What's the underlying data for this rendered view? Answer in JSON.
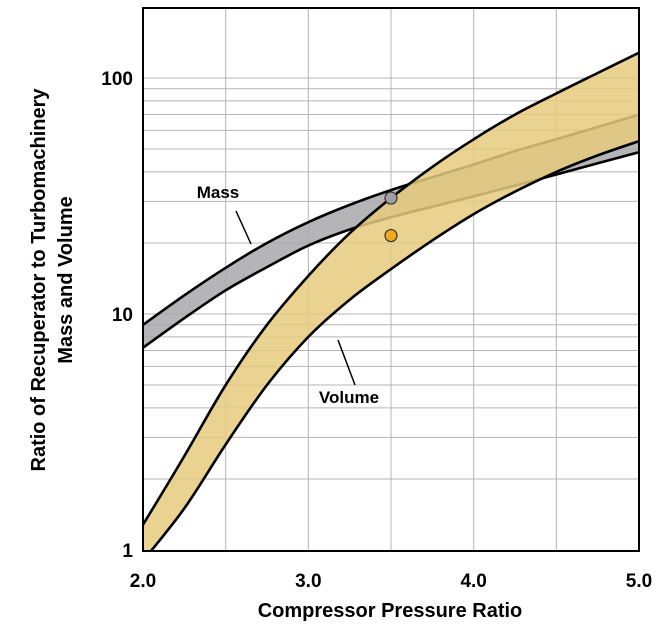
{
  "chart_data": {
    "type": "area",
    "title": "",
    "xlabel": "Compressor Pressure Ratio",
    "ylabel": [
      "Ratio of Recuperator to Turbomachinery",
      "Mass and Volume"
    ],
    "xlim": [
      2.0,
      5.0
    ],
    "ylim": [
      1,
      200
    ],
    "y_scale": "log",
    "grid": true,
    "x_ticks": [
      "2.0",
      "3.0",
      "4.0",
      "5.0"
    ],
    "y_ticks": [
      "1",
      "10",
      "100"
    ],
    "series": [
      {
        "name": "Mass",
        "color": "#a8a8aa",
        "x": [
          2.0,
          2.25,
          2.5,
          2.75,
          3.0,
          3.25,
          3.5,
          3.75,
          4.0,
          4.25,
          4.5,
          4.75,
          5.0
        ],
        "upper": [
          9.0,
          12.0,
          15.7,
          20.0,
          24.5,
          29.0,
          33.5,
          38.0,
          43.0,
          49.0,
          55.0,
          62.0,
          70.0
        ],
        "lower": [
          7.2,
          9.6,
          12.6,
          15.8,
          19.5,
          22.8,
          25.7,
          28.5,
          31.5,
          35.0,
          39.0,
          43.5,
          48.5
        ]
      },
      {
        "name": "Volume",
        "color": "#e6ca7e",
        "x": [
          2.0,
          2.25,
          2.5,
          2.75,
          3.0,
          3.25,
          3.5,
          3.75,
          4.0,
          4.25,
          4.5,
          4.75,
          5.0
        ],
        "upper": [
          1.28,
          2.5,
          5.0,
          9.0,
          14.5,
          22.0,
          31.0,
          42.0,
          55.0,
          70.0,
          86.0,
          105.0,
          128.0
        ],
        "lower": [
          0.9,
          1.5,
          2.8,
          5.0,
          8.0,
          11.5,
          15.5,
          20.5,
          26.5,
          33.0,
          40.0,
          47.0,
          54.0
        ]
      }
    ],
    "points": [
      {
        "x": 3.5,
        "y": 31.0,
        "color": "#a0a0a4"
      },
      {
        "x": 3.5,
        "y": 21.5,
        "color": "#f0aa1e"
      }
    ],
    "annotations": [
      {
        "text": "Mass",
        "series": "Mass"
      },
      {
        "text": "Volume",
        "series": "Volume"
      }
    ]
  }
}
